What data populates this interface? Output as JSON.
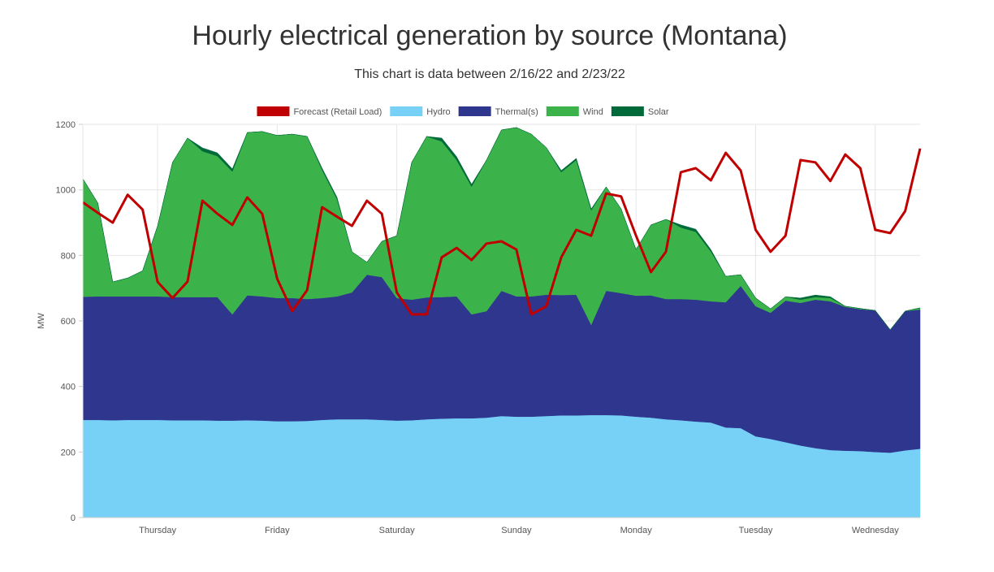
{
  "chart_data": {
    "type": "area",
    "stacked": true,
    "title": "Hourly electrical generation by source (Montana)",
    "subtitle": "This chart is data between 2/16/22 and 2/23/22",
    "ylabel": "MW",
    "xlabel": "",
    "ylim": [
      0,
      1200
    ],
    "y_ticks": [
      0,
      200,
      400,
      600,
      800,
      1000,
      1200
    ],
    "x_ticks": [
      {
        "label": "Thursday",
        "at": "2/17 00:00"
      },
      {
        "label": "Friday",
        "at": "2/18 00:00"
      },
      {
        "label": "Saturday",
        "at": "2/19 00:00"
      },
      {
        "label": "Sunday",
        "at": "2/20 00:00"
      },
      {
        "label": "Monday",
        "at": "2/21 00:00"
      },
      {
        "label": "Tuesday",
        "at": "2/22 00:00"
      },
      {
        "label": "Wednesday",
        "at": "2/23 00:00"
      }
    ],
    "grid": true,
    "legend_position": "top",
    "x": [
      "2/16 09:00",
      "2/16 12:00",
      "2/16 15:00",
      "2/16 18:00",
      "2/16 21:00",
      "2/17 00:00",
      "2/17 03:00",
      "2/17 06:00",
      "2/17 09:00",
      "2/17 12:00",
      "2/17 15:00",
      "2/17 18:00",
      "2/17 21:00",
      "2/18 00:00",
      "2/18 03:00",
      "2/18 06:00",
      "2/18 09:00",
      "2/18 12:00",
      "2/18 15:00",
      "2/18 18:00",
      "2/18 21:00",
      "2/19 00:00",
      "2/19 03:00",
      "2/19 06:00",
      "2/19 09:00",
      "2/19 12:00",
      "2/19 15:00",
      "2/19 18:00",
      "2/19 21:00",
      "2/20 00:00",
      "2/20 03:00",
      "2/20 06:00",
      "2/20 09:00",
      "2/20 12:00",
      "2/20 15:00",
      "2/20 18:00",
      "2/20 21:00",
      "2/21 00:00",
      "2/21 03:00",
      "2/21 06:00",
      "2/21 09:00",
      "2/21 12:00",
      "2/21 15:00",
      "2/21 18:00",
      "2/21 21:00",
      "2/22 00:00",
      "2/22 03:00",
      "2/22 06:00",
      "2/22 09:00",
      "2/22 12:00",
      "2/22 15:00",
      "2/22 18:00",
      "2/22 21:00",
      "2/23 00:00",
      "2/23 03:00",
      "2/23 06:00",
      "2/23 09:00"
    ],
    "series": [
      {
        "name": "Hydro",
        "kind": "area",
        "color": "#77d0f5",
        "values": [
          298,
          298,
          297,
          298,
          298,
          298,
          297,
          297,
          297,
          296,
          296,
          297,
          296,
          294,
          294,
          295,
          298,
          300,
          300,
          300,
          298,
          296,
          297,
          300,
          302,
          303,
          303,
          305,
          310,
          308,
          308,
          310,
          312,
          312,
          313,
          313,
          312,
          308,
          305,
          300,
          297,
          293,
          290,
          275,
          273,
          248,
          240,
          230,
          220,
          212,
          206,
          204,
          203,
          200,
          198,
          205,
          210
        ]
      },
      {
        "name": "Thermal(s)",
        "kind": "area",
        "color": "#2e368e",
        "values": [
          376,
          377,
          378,
          377,
          377,
          377,
          376,
          376,
          376,
          377,
          324,
          381,
          379,
          376,
          376,
          372,
          372,
          375,
          387,
          441,
          436,
          374,
          368,
          372,
          371,
          372,
          317,
          325,
          382,
          367,
          367,
          370,
          367,
          368,
          275,
          379,
          373,
          369,
          373,
          367,
          370,
          372,
          370,
          382,
          434,
          397,
          385,
          432,
          435,
          453,
          454,
          439,
          433,
          432,
          375,
          425,
          425
        ]
      },
      {
        "name": "Wind",
        "kind": "area",
        "color": "#3cb34a",
        "values": [
          360,
          285,
          44,
          56,
          78,
          215,
          411,
          485,
          445,
          430,
          436,
          497,
          503,
          496,
          500,
          496,
          391,
          297,
          124,
          38,
          109,
          190,
          419,
          491,
          475,
          416,
          390,
          461,
          491,
          515,
          495,
          449,
          375,
          411,
          350,
          317,
          257,
          141,
          215,
          243,
          218,
          207,
          152,
          79,
          34,
          25,
          12,
          12,
          10,
          8,
          10,
          2,
          2,
          0,
          0,
          0,
          5
        ]
      },
      {
        "name": "Solar",
        "kind": "area",
        "color": "#006a3a",
        "values": [
          0,
          0,
          0,
          0,
          0,
          0,
          0,
          0,
          10,
          10,
          8,
          0,
          0,
          0,
          0,
          0,
          5,
          5,
          0,
          0,
          0,
          0,
          0,
          0,
          10,
          10,
          7,
          0,
          0,
          0,
          0,
          0,
          5,
          5,
          4,
          0,
          0,
          0,
          0,
          0,
          8,
          8,
          6,
          0,
          0,
          0,
          0,
          0,
          5,
          6,
          4,
          0,
          0,
          0,
          0,
          0,
          0
        ]
      },
      {
        "name": "Forecast (Retail Load)",
        "kind": "line",
        "color": "#c00000",
        "values": [
          962,
          930,
          900,
          985,
          940,
          719,
          670,
          720,
          967,
          927,
          893,
          977,
          927,
          729,
          630,
          694,
          947,
          918,
          890,
          967,
          927,
          687,
          620,
          620,
          794,
          823,
          786,
          836,
          843,
          818,
          620,
          645,
          794,
          878,
          860,
          989,
          980,
          860,
          749,
          811,
          1054,
          1066,
          1029,
          1113,
          1059,
          878,
          811,
          860,
          1091,
          1084,
          1027,
          1108,
          1066,
          878,
          868,
          935,
          1126
        ]
      }
    ],
    "legend": [
      {
        "label": "Forecast (Retail Load)",
        "color": "#c00000"
      },
      {
        "label": "Hydro",
        "color": "#77d0f5"
      },
      {
        "label": "Thermal(s)",
        "color": "#2e368e"
      },
      {
        "label": "Wind",
        "color": "#3cb34a"
      },
      {
        "label": "Solar",
        "color": "#006a3a"
      }
    ]
  }
}
